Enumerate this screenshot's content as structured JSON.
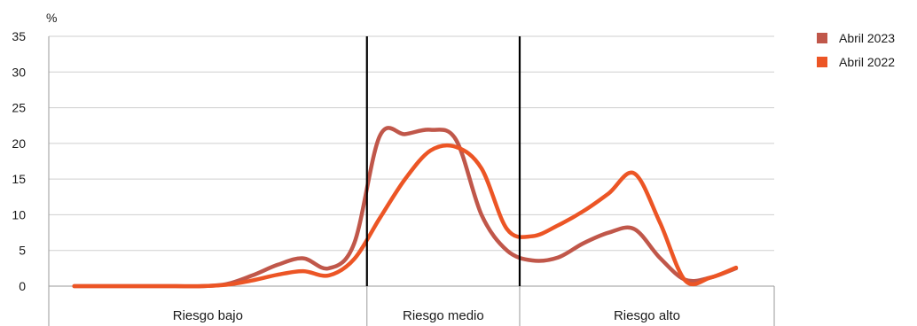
{
  "chart_data": {
    "type": "line",
    "ylabel": "%",
    "ylim": [
      0,
      35
    ],
    "yticks": [
      0,
      5,
      10,
      15,
      20,
      25,
      30,
      35
    ],
    "grid": true,
    "legend_position": "top-right",
    "x": [
      0,
      1,
      2,
      3,
      4,
      5,
      6,
      7,
      8,
      9,
      10,
      11,
      12,
      13,
      14,
      15,
      16,
      17,
      18,
      19,
      20,
      21,
      22,
      23,
      24,
      25,
      26
    ],
    "xlim": [
      -1,
      27.5
    ],
    "zones": [
      {
        "label": "Riesgo bajo",
        "from": -1,
        "to": 11.5
      },
      {
        "label": "Riesgo medio",
        "from": 11.5,
        "to": 17.5
      },
      {
        "label": "Riesgo alto",
        "from": 17.5,
        "to": 27.5
      }
    ],
    "series": [
      {
        "name": "Abril 2023",
        "color": "#c0574a",
        "values": [
          0,
          0,
          0,
          0,
          0,
          0,
          0.3,
          1.5,
          3.0,
          3.9,
          2.5,
          6.0,
          21.0,
          21.3,
          21.9,
          20.5,
          10.0,
          5.0,
          3.6,
          4.0,
          6.0,
          7.5,
          8.0,
          4.0,
          0.9,
          1.2,
          2.5
        ]
      },
      {
        "name": "Abril 2022",
        "color": "#ec5525",
        "values": [
          0,
          0,
          0,
          0,
          0,
          0,
          0.2,
          0.8,
          1.6,
          2.1,
          1.5,
          3.8,
          9.5,
          15.0,
          19.0,
          19.5,
          16.5,
          8.0,
          7.0,
          8.5,
          10.5,
          13.0,
          15.8,
          9.0,
          0.8,
          1.2,
          2.6
        ]
      }
    ]
  }
}
